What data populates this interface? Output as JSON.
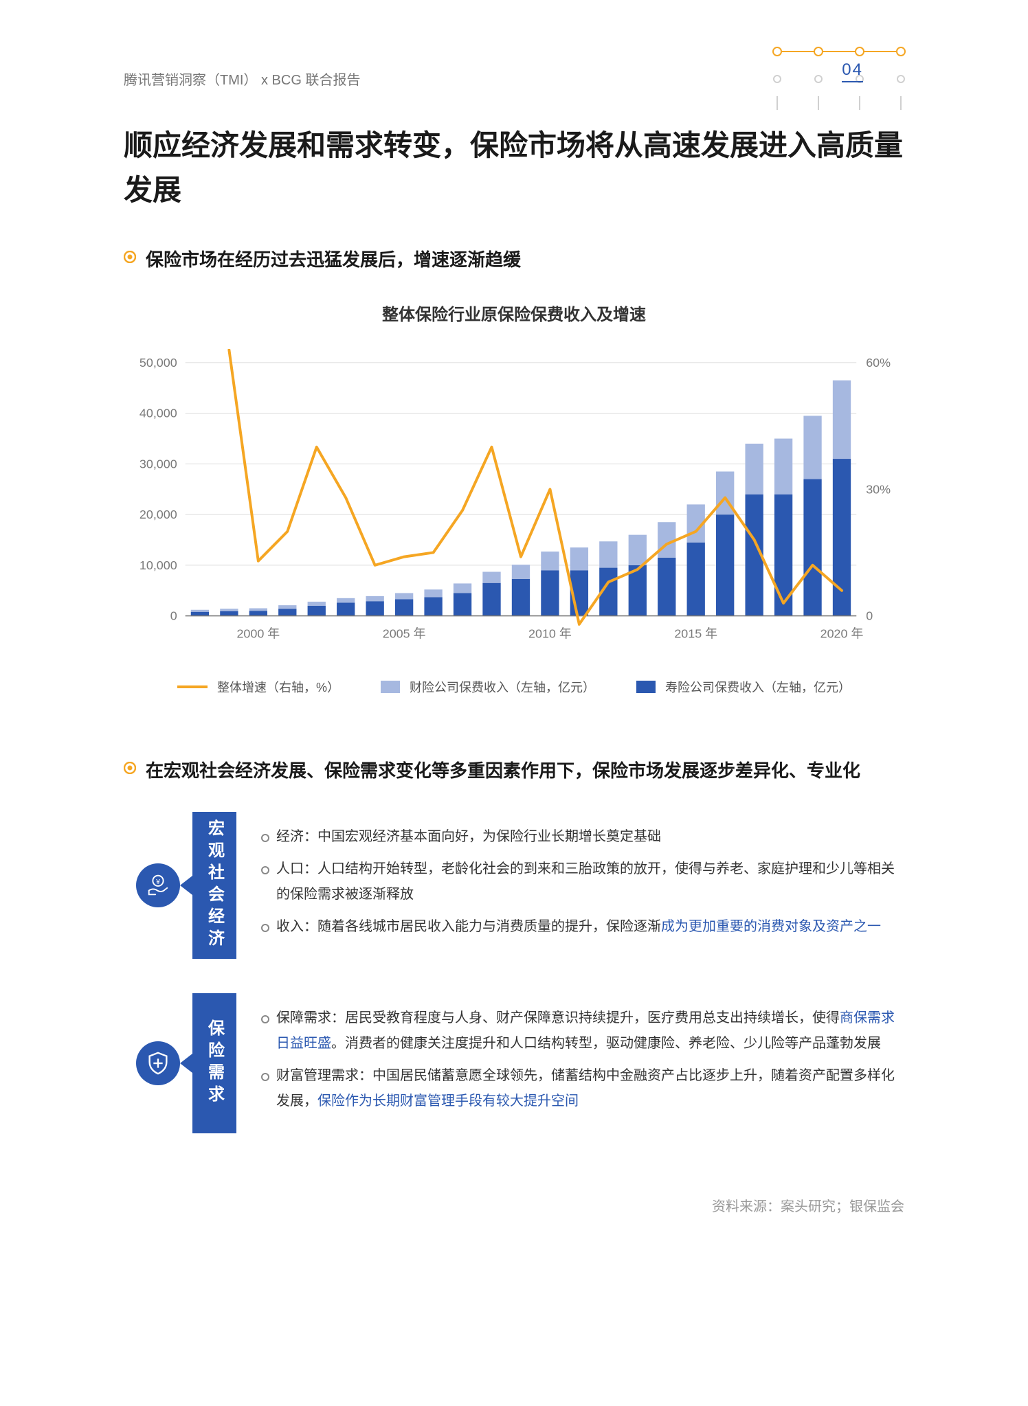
{
  "page_number": "04",
  "breadcrumb": "腾讯营销洞察（TMI） x  BCG 联合报告",
  "title": "顺应经济发展和需求转变，保险市场将从高速发展进入高质量发展",
  "accent_orange": "#f5a623",
  "accent_blue": "#2b58b0",
  "bullet1": "保险市场在经历过去迅猛发展后，增速逐渐趋缓",
  "chart": {
    "title": "整体保险行业原保险保费收入及增速",
    "type": "stacked-bar-plus-line",
    "background_color": "#ffffff",
    "grid_color": "#dcdcdc",
    "axis_color": "#7a7a7a",
    "axis_fontsize": 18,
    "bar_colors": {
      "lower": "#2b58b0",
      "upper": "#a6b8e0"
    },
    "line_color": "#f5a623",
    "line_width": 4,
    "y_left": {
      "min": 0,
      "max": 50000,
      "step": 10000,
      "labels": [
        "0",
        "10,000",
        "20,000",
        "30,000",
        "40,000",
        "50,000"
      ]
    },
    "y_right": {
      "min": 0,
      "max": 60,
      "step": 30,
      "labels": [
        "0",
        "30%",
        "60%"
      ]
    },
    "x_ticks": [
      "2000 年",
      "2005 年",
      "2010 年",
      "2015 年",
      "2020 年"
    ],
    "x_tick_positions": [
      2,
      7,
      12,
      17,
      22
    ],
    "years": [
      1998,
      1999,
      2000,
      2001,
      2002,
      2003,
      2004,
      2005,
      2006,
      2007,
      2008,
      2009,
      2010,
      2011,
      2012,
      2013,
      2014,
      2015,
      2016,
      2017,
      2018,
      2019,
      2020
    ],
    "lower_values": [
      800,
      900,
      1000,
      1400,
      2000,
      2600,
      2900,
      3300,
      3700,
      4500,
      6500,
      7300,
      9000,
      9000,
      9500,
      10000,
      11500,
      14500,
      20000,
      24000,
      24000,
      27000,
      31000
    ],
    "upper_values": [
      400,
      500,
      500,
      700,
      800,
      900,
      1000,
      1200,
      1500,
      1900,
      2200,
      2800,
      3700,
      4500,
      5200,
      6000,
      7000,
      7500,
      8500,
      10000,
      11000,
      12500,
      15500
    ],
    "line_values": [
      null,
      63,
      13,
      20,
      40,
      28,
      12,
      14,
      15,
      25,
      40,
      14,
      30,
      -2,
      8,
      11,
      17,
      20,
      28,
      18,
      3,
      12,
      6
    ],
    "legend": [
      {
        "type": "line",
        "color": "#f5a623",
        "label": "整体增速（右轴，%）"
      },
      {
        "type": "box",
        "color": "#a6b8e0",
        "label": "财险公司保费收入（左轴，亿元）"
      },
      {
        "type": "box",
        "color": "#2b58b0",
        "label": "寿险公司保费收入（左轴，亿元）"
      }
    ]
  },
  "bullet2": "在宏观社会经济发展、保险需求变化等多重因素作用下，保险市场发展逐步差异化、专业化",
  "cards": [
    {
      "icon": "hand-coin-icon",
      "tab_label": "宏观社会经济",
      "items": [
        {
          "label": "经济：",
          "text": "中国宏观经济基本面向好，为保险行业长期增长奠定基础"
        },
        {
          "label": "人口：",
          "text": "人口结构开始转型，老龄化社会的到来和三胎政策的放开，使得与养老、家庭护理和少儿等相关的保险需求被逐渐释放"
        },
        {
          "label": "收入：",
          "text_a": "随着各线城市居民收入能力与消费质量的提升，保险逐渐",
          "hl": "成为更加重要的消费对象及资产之一"
        }
      ]
    },
    {
      "icon": "shield-plus-icon",
      "tab_label": "保险需求",
      "items": [
        {
          "label": "保障需求：",
          "text_a": "居民受教育程度与人身、财产保障意识持续提升，医疗费用总支出持续增长，使得",
          "hl": "商保需求日益旺盛",
          "text_b": "。消费者的健康关注度提升和人口结构转型，驱动健康险、养老险、少儿险等产品蓬勃发展"
        },
        {
          "label": "财富管理需求：",
          "text_a": "中国居民储蓄意愿全球领先，储蓄结构中金融资产占比逐步上升，随着资产配置多样化发展，",
          "hl": "保险作为长期财富管理手段有较大提升空间"
        }
      ]
    }
  ],
  "source": "资料来源：案头研究；银保监会"
}
